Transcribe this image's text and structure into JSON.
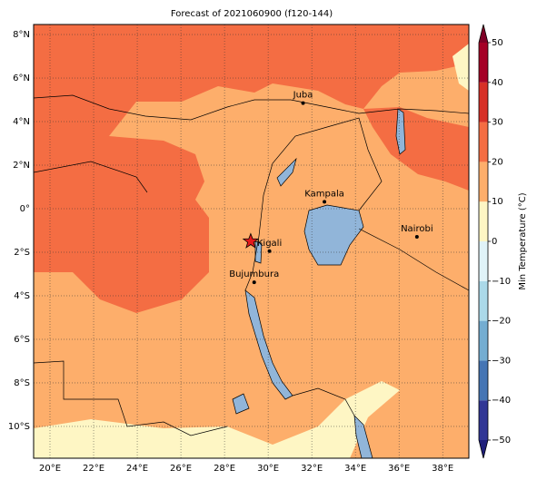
{
  "map": {
    "title": "Forecast of 2021060900 (f120-144)",
    "xlim": [
      19.25,
      39.2
    ],
    "ylim": [
      -11.46,
      8.46
    ],
    "xticks": [
      {
        "value": 20,
        "label": "20°E"
      },
      {
        "value": 22,
        "label": "22°E"
      },
      {
        "value": 24,
        "label": "24°E"
      },
      {
        "value": 26,
        "label": "26°E"
      },
      {
        "value": 28,
        "label": "28°E"
      },
      {
        "value": 30,
        "label": "30°E"
      },
      {
        "value": 32,
        "label": "32°E"
      },
      {
        "value": 34,
        "label": "34°E"
      },
      {
        "value": 36,
        "label": "36°E"
      },
      {
        "value": 38,
        "label": "38°E"
      }
    ],
    "yticks": [
      {
        "value": 8,
        "label": "8°N"
      },
      {
        "value": 6,
        "label": "6°N"
      },
      {
        "value": 4,
        "label": "4°N"
      },
      {
        "value": 2,
        "label": "2°N"
      },
      {
        "value": 0,
        "label": "0°"
      },
      {
        "value": -2,
        "label": "2°S"
      },
      {
        "value": -4,
        "label": "4°S"
      },
      {
        "value": -6,
        "label": "6°S"
      },
      {
        "value": -8,
        "label": "8°S"
      },
      {
        "value": -10,
        "label": "10°S"
      }
    ],
    "grid": true,
    "cities": [
      {
        "name": "Juba",
        "lon": 31.6,
        "lat": 4.85
      },
      {
        "name": "Kampala",
        "lon": 32.58,
        "lat": 0.32
      },
      {
        "name": "Nairobi",
        "lon": 36.82,
        "lat": -1.29
      },
      {
        "name": "Kigali",
        "lon": 30.06,
        "lat": -1.95
      },
      {
        "name": "Bujumbura",
        "lon": 29.36,
        "lat": -3.38
      }
    ],
    "star": {
      "lon": 29.2,
      "lat": -1.5,
      "color": "#e41a1c"
    },
    "colorbar": {
      "label": "Min Temperature (°C)",
      "lim": [
        -50,
        50
      ],
      "ticks": [
        {
          "value": -50,
          "label": "−50"
        },
        {
          "value": -40,
          "label": "−40"
        },
        {
          "value": -30,
          "label": "−30"
        },
        {
          "value": -20,
          "label": "−20"
        },
        {
          "value": -10,
          "label": "−10"
        },
        0,
        10,
        20,
        30,
        40,
        50
      ],
      "colors": [
        "#313695",
        "#4575b4",
        "#74add1",
        "#abd9e9",
        "#e0f3f8",
        "#fef6c4",
        "#fdae6b",
        "#f46d43",
        "#d73027",
        "#a50026"
      ],
      "under": "#1f1f7a",
      "over": "#7f0026"
    }
  }
}
